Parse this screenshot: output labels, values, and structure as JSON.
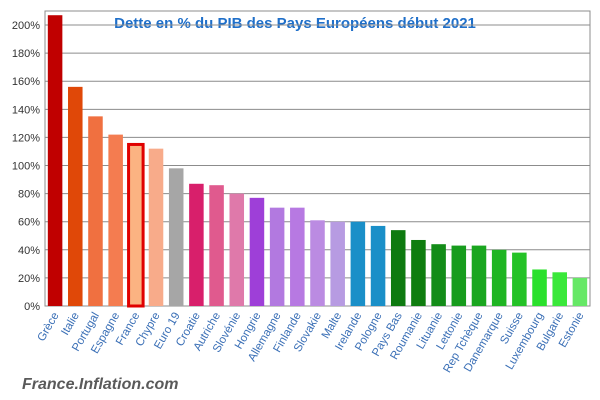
{
  "chart_data": {
    "type": "bar",
    "title": "Dette en % du PIB des Pays Européens début 2021",
    "watermark": "France.Inflation.com",
    "categories": [
      "Grèce",
      "Italie",
      "Portugal",
      "Espagne",
      "France",
      "Chypre",
      "Euro 19",
      "Croatie",
      "Autriche",
      "Slovénie",
      "Hongrie",
      "Allemagne",
      "Finlande",
      "Slovakie",
      "Malte",
      "Irelande",
      "Pologne",
      "Pays Bas",
      "Roumanie",
      "Lituanie",
      "Lettonie",
      "Rep Tchèque",
      "Danemarque",
      "Suisse",
      "Luxembourg",
      "Bulgarie",
      "Estonie"
    ],
    "values": [
      207,
      156,
      135,
      122,
      115,
      112,
      98,
      87,
      86,
      80,
      77,
      70,
      70,
      61,
      60,
      60,
      57,
      54,
      47,
      44,
      43,
      43,
      40,
      38,
      26,
      24,
      20
    ],
    "ylim": [
      0,
      210
    ],
    "yticks": [
      "0%",
      "20%",
      "40%",
      "60%",
      "80%",
      "100%",
      "120%",
      "140%",
      "160%",
      "180%",
      "200%"
    ],
    "grid": true,
    "colors": [
      "#c00000",
      "#e04808",
      "#f07040",
      "#f47c50",
      "#fbb382",
      "#f8ab8a",
      "#a6a6a6",
      "#d81f6b",
      "#e05a8e",
      "#df79aa",
      "#9e3fd8",
      "#b279e0",
      "#b779e2",
      "#bb8be2",
      "#b79be2",
      "#1a8fc8",
      "#1a8fc8",
      "#0e7a10",
      "#0f7d0f",
      "#138c18",
      "#179c1d",
      "#1aa61f",
      "#1fb522",
      "#24c226",
      "#2ae02c",
      "#3ae83a",
      "#66e866"
    ],
    "highlight": {
      "category": "France",
      "border_color": "#e00000"
    }
  }
}
